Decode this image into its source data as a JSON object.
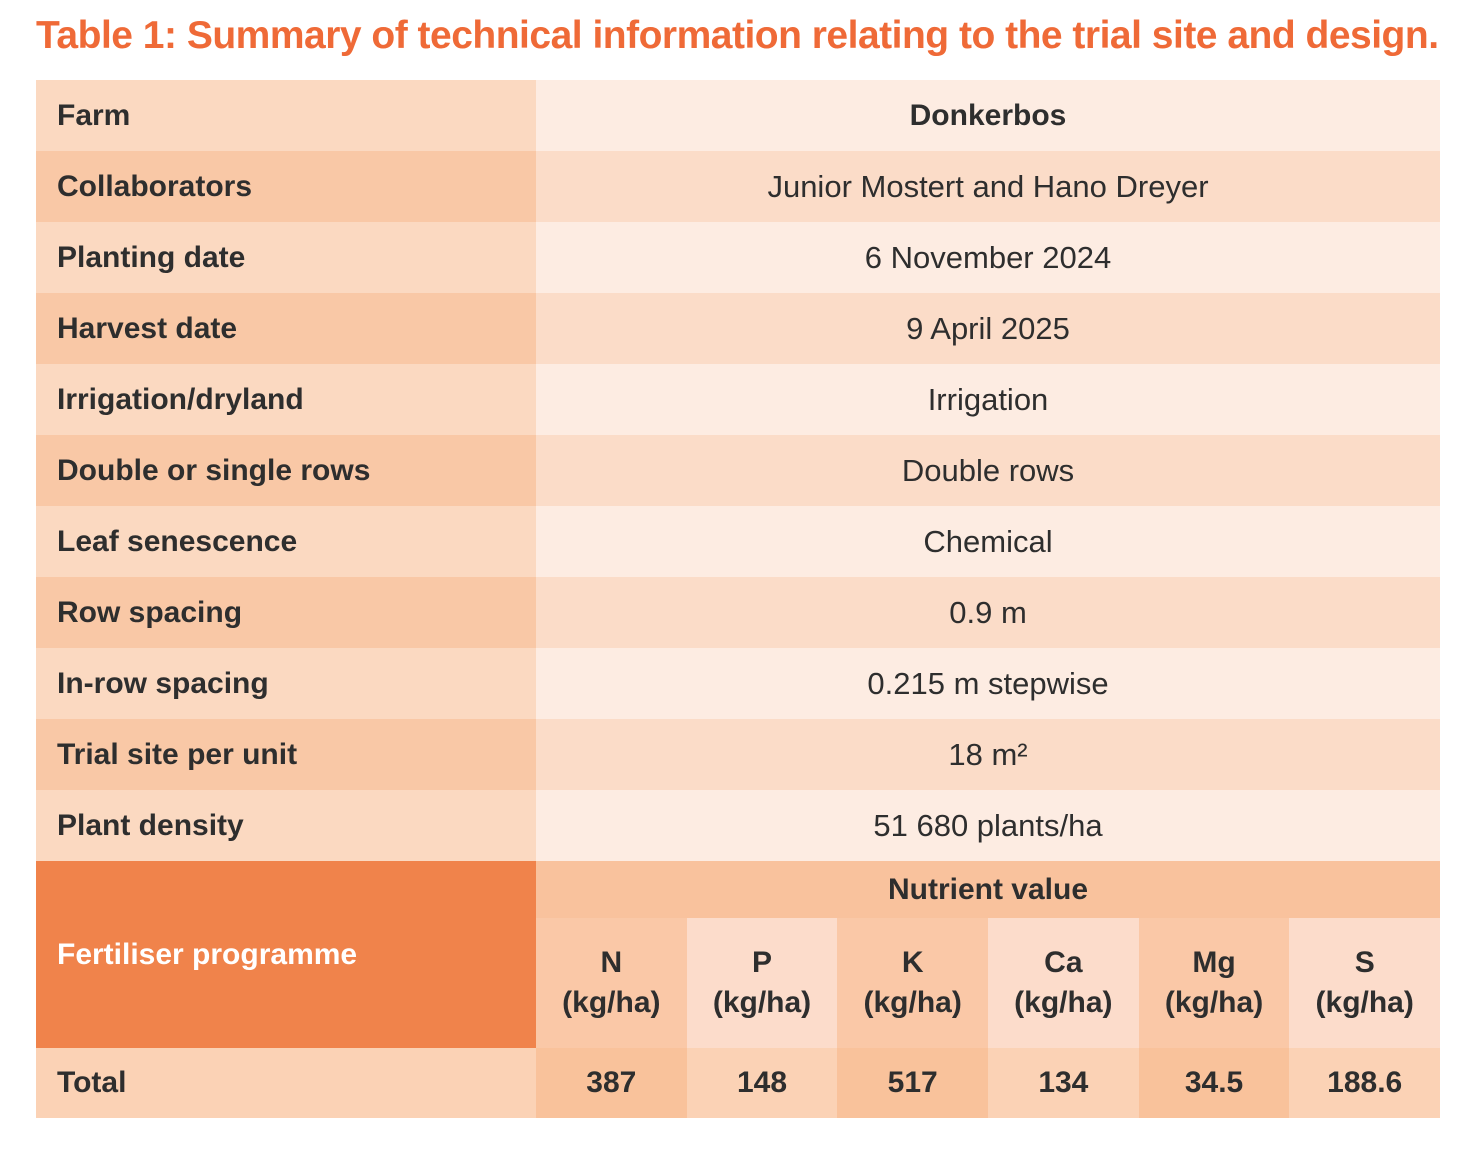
{
  "title": "Table 1: Summary of technical information relating to the trial site and design.",
  "table": {
    "rows": [
      {
        "label": "Farm",
        "value": "Donkerbos"
      },
      {
        "label": "Collaborators",
        "value": "Junior Mostert and Hano Dreyer"
      },
      {
        "label": "Planting date",
        "value": "6 November 2024"
      },
      {
        "label": "Harvest date",
        "value": "9 April 2025"
      },
      {
        "label": "Irrigation/dryland",
        "value": "Irrigation"
      },
      {
        "label": "Double or single rows",
        "value": "Double rows"
      },
      {
        "label": "Leaf senescence",
        "value": "Chemical"
      },
      {
        "label": "Row spacing",
        "value": "0.9 m"
      },
      {
        "label": "In-row spacing",
        "value": "0.215 m stepwise"
      },
      {
        "label": "Trial site per unit",
        "value": "18 m²"
      },
      {
        "label": "Plant density",
        "value": "51 680 plants/ha"
      }
    ],
    "fertiliser": {
      "label": "Fertiliser programme",
      "nutrient_header": "Nutrient value",
      "columns": [
        {
          "element": "N",
          "unit": "(kg/ha)"
        },
        {
          "element": "P",
          "unit": "(kg/ha)"
        },
        {
          "element": "K",
          "unit": "(kg/ha)"
        },
        {
          "element": "Ca",
          "unit": "(kg/ha)"
        },
        {
          "element": "Mg",
          "unit": "(kg/ha)"
        },
        {
          "element": "S",
          "unit": "(kg/ha)"
        }
      ]
    },
    "total": {
      "label": "Total",
      "values": [
        "387",
        "148",
        "517",
        "134",
        "34.5",
        "188.6"
      ]
    }
  },
  "colors": {
    "title_orange": "#ef6a37",
    "fert_orange": "#f0834b",
    "label_odd": "#fbd9c1",
    "label_even": "#f9c8a6",
    "value_odd": "#fdece2",
    "value_even": "#fbdcc8",
    "nutrient_band": "#f9c29d",
    "col_dark": "#fac8a7",
    "col_light": "#fcdccb",
    "total_dark": "#f9c29b",
    "total_light": "#fbd2b5",
    "text_dark": "#2e2e2e"
  }
}
